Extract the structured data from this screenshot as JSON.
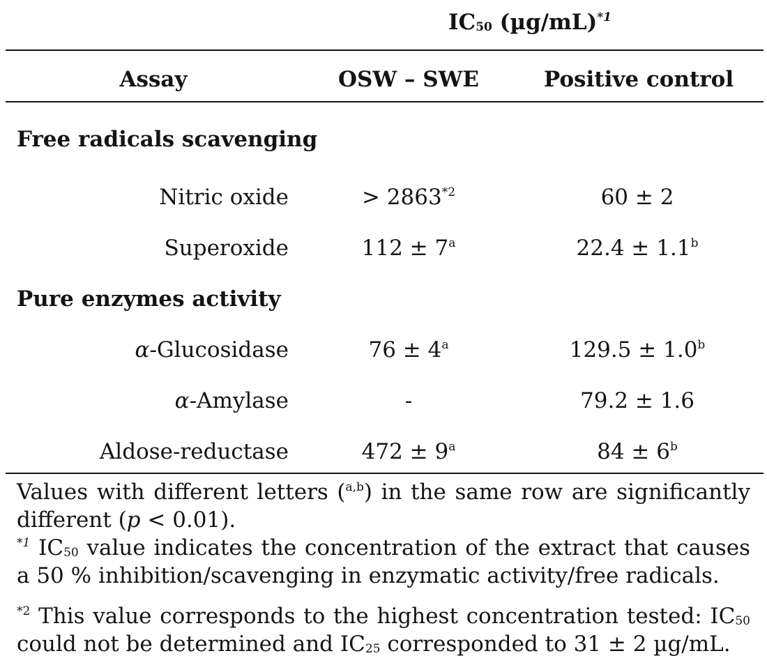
{
  "header": {
    "ic_label": "IC",
    "ic_sub": "50",
    "ic_unit": " (µg/mL)",
    "ic_note_mark": "*1"
  },
  "columns": {
    "assay": "Assay",
    "osw": "OSW – SWE",
    "positive": "Positive control"
  },
  "sections": [
    {
      "title": "Free radicals scavenging",
      "rows": [
        {
          "assay": "Nitric oxide",
          "osw": "> 2863",
          "osw_sup": "*2",
          "pos": "60 ± 2",
          "pos_sup": ""
        },
        {
          "assay": "Superoxide",
          "osw": "112 ± 7",
          "osw_sup": "a",
          "pos": "22.4 ± 1.1",
          "pos_sup": "b"
        }
      ]
    },
    {
      "title": "Pure enzymes activity",
      "rows": [
        {
          "assay_greek": "α",
          "assay": "-Glucosidase",
          "osw": "76 ± 4",
          "osw_sup": "a",
          "pos": "129.5 ± 1.0",
          "pos_sup": "b"
        },
        {
          "assay_greek": "α",
          "assay": "-Amylase",
          "osw": "-",
          "osw_sup": "",
          "pos": "79.2 ± 1.6",
          "pos_sup": ""
        },
        {
          "assay": "Aldose-reductase",
          "osw": "472 ± 9",
          "osw_sup": "a",
          "pos": "84 ± 6",
          "pos_sup": "b"
        }
      ]
    }
  ],
  "notes": {
    "n1_a": "Values with different letters (",
    "n1_sup": "a,b",
    "n1_b": ") in the same row are significantly different (",
    "n1_p": "p",
    "n1_c": " < 0.01).",
    "n2_mark": "*1",
    "n2_a": " IC",
    "n2_sub": "50",
    "n2_b": " value indicates the concentration of the extract that causes a 50 % inhibition/scavenging in enzymatic activity/free radicals.",
    "n3_mark": "*2",
    "n3_a": " This value corresponds to the highest concentration tested: IC",
    "n3_sub": "50",
    "n3_b": " could not be determined and IC",
    "n3_sub2": "25",
    "n3_c": " corresponded to 31 ± 2 µg/mL."
  }
}
